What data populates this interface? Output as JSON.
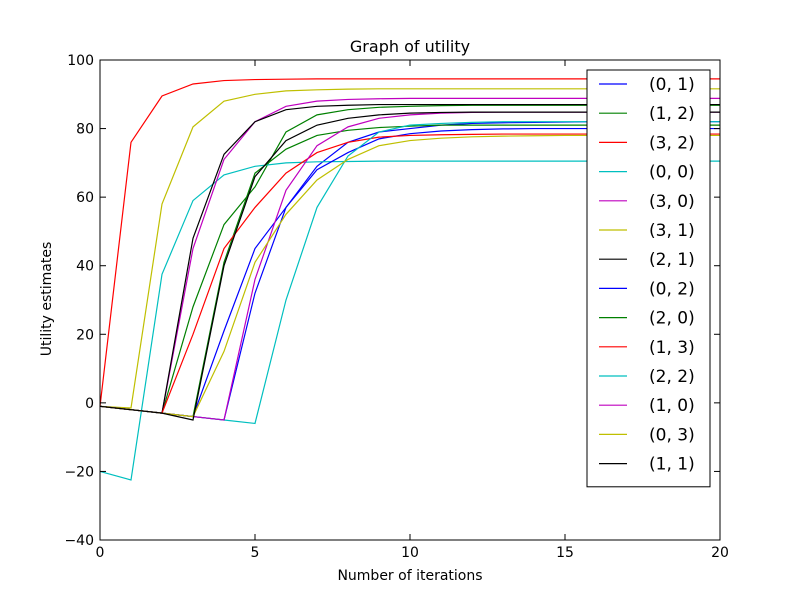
{
  "chart_data": {
    "type": "line",
    "title": "Graph of utility",
    "xlabel": "Number of iterations",
    "ylabel": "Utility estimates",
    "xlim": [
      0,
      20
    ],
    "ylim": [
      -40,
      100
    ],
    "xticks": [
      0,
      5,
      10,
      15,
      20
    ],
    "yticks": [
      -40,
      -20,
      0,
      20,
      40,
      60,
      80,
      100
    ],
    "grid": false,
    "legend_position": "top-right",
    "x": [
      0,
      1,
      2,
      3,
      4,
      5,
      6,
      7,
      8,
      9,
      10,
      11,
      12,
      13,
      14,
      15,
      16,
      17,
      18,
      19,
      20
    ],
    "series": [
      {
        "name": "(0, 1)",
        "color": "#0000ff",
        "values": [
          -1,
          -2,
          -3,
          -4,
          21,
          45,
          57,
          69,
          76,
          79,
          80,
          81,
          81.5,
          81.7,
          81.8,
          81.9,
          82,
          82,
          82,
          82,
          82
        ]
      },
      {
        "name": "(1, 2)",
        "color": "#008000",
        "values": [
          -1,
          -2,
          -3,
          28,
          52,
          63,
          79,
          84,
          85.5,
          86.2,
          86.5,
          86.7,
          86.8,
          86.8,
          86.8,
          86.8,
          86.8,
          86.8,
          86.8,
          86.8,
          86.8
        ]
      },
      {
        "name": "(3, 2)",
        "color": "#ff0000",
        "values": [
          -1,
          76,
          89.5,
          93,
          94,
          94.3,
          94.4,
          94.5,
          94.5,
          94.5,
          94.5,
          94.5,
          94.5,
          94.5,
          94.5,
          94.5,
          94.5,
          94.5,
          94.5,
          94.5,
          94.5
        ]
      },
      {
        "name": "(0, 0)",
        "color": "#00bfbf",
        "values": [
          -20,
          -22.5,
          37.5,
          59,
          66.5,
          69,
          70,
          70.3,
          70.4,
          70.5,
          70.5,
          70.5,
          70.5,
          70.5,
          70.5,
          70.5,
          70.5,
          70.5,
          70.5,
          70.5,
          70.5
        ]
      },
      {
        "name": "(3, 0)",
        "color": "#bf00bf",
        "values": [
          -1,
          -2,
          -3,
          45,
          71,
          82,
          86.5,
          88,
          88.5,
          88.7,
          88.8,
          88.8,
          88.8,
          88.8,
          88.8,
          88.8,
          88.8,
          88.8,
          88.8,
          88.8,
          88.8
        ]
      },
      {
        "name": "(3, 1)",
        "color": "#bfbf00",
        "values": [
          -1,
          -1.5,
          58,
          80.5,
          88,
          90,
          91,
          91.3,
          91.5,
          91.6,
          91.6,
          91.6,
          91.6,
          91.6,
          91.6,
          91.6,
          91.6,
          91.6,
          91.6,
          91.6,
          91.6
        ]
      },
      {
        "name": "(2, 1)",
        "color": "#000000",
        "values": [
          -1,
          -2,
          -3,
          48,
          72.5,
          82,
          85.5,
          86.5,
          86.8,
          87,
          87,
          87,
          87,
          87,
          87,
          87,
          87,
          87,
          87,
          87,
          87
        ]
      },
      {
        "name": "(0, 2)",
        "color": "#0000ff",
        "values": [
          -1,
          -2,
          -3,
          -4,
          -5,
          32,
          57,
          68,
          73,
          77,
          78.5,
          79.3,
          79.7,
          79.9,
          80,
          80,
          80,
          80,
          80,
          80,
          80
        ]
      },
      {
        "name": "(2, 0)",
        "color": "#008000",
        "values": [
          -1,
          -2,
          -3,
          -4,
          41,
          67,
          74,
          78,
          79.5,
          80.3,
          80.7,
          81,
          81,
          81,
          81,
          81,
          81,
          81,
          81,
          81,
          81
        ]
      },
      {
        "name": "(1, 3)",
        "color": "#ff0000",
        "values": [
          -1,
          -2,
          -3,
          20,
          45,
          57,
          67,
          73,
          76,
          77.5,
          78,
          78.2,
          78.3,
          78.4,
          78.4,
          78.4,
          78.4,
          78.4,
          78.4,
          78.4,
          78.4
        ]
      },
      {
        "name": "(2, 2)",
        "color": "#00bfbf",
        "values": [
          -1,
          -2,
          -3,
          -4,
          -5,
          -6,
          30,
          57,
          72,
          79,
          81,
          81.5,
          81.8,
          82,
          82,
          82,
          82,
          82,
          82,
          82,
          82
        ]
      },
      {
        "name": "(1, 0)",
        "color": "#bf00bf",
        "values": [
          -1,
          -2,
          -3,
          -4,
          -5,
          36,
          62,
          75,
          80.5,
          83,
          84,
          84.5,
          84.7,
          84.8,
          84.8,
          84.8,
          84.8,
          84.8,
          84.8,
          84.8,
          84.8
        ]
      },
      {
        "name": "(0, 3)",
        "color": "#bfbf00",
        "values": [
          -1,
          -2,
          -3,
          -4,
          15,
          41,
          55,
          65,
          71,
          75,
          76.5,
          77.2,
          77.6,
          77.8,
          77.9,
          78,
          78,
          78,
          78,
          78,
          78
        ]
      },
      {
        "name": "(1, 1)",
        "color": "#000000",
        "values": [
          -1,
          -2,
          -3,
          -5,
          40,
          66,
          76.5,
          81,
          83,
          84,
          84.5,
          84.7,
          84.8,
          84.8,
          84.8,
          84.8,
          84.8,
          84.8,
          84.8,
          84.8,
          84.8
        ]
      }
    ]
  }
}
